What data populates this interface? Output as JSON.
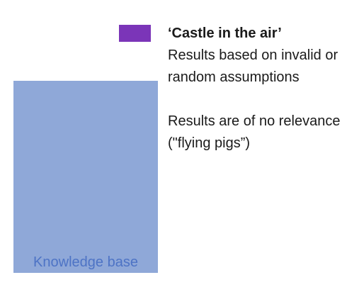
{
  "diagram": {
    "knowledge_base": {
      "label": "Knowledge base",
      "color": "#8FA8D8",
      "label_color": "#4D73C5"
    },
    "marker": {
      "color": "#7B35B8"
    },
    "description": {
      "title": "‘Castle in the air’",
      "line1": "Results based on invalid or",
      "line2": "random assumptions",
      "line3": "Results are of no relevance",
      "line4": "(\"flying pigs”)"
    }
  }
}
